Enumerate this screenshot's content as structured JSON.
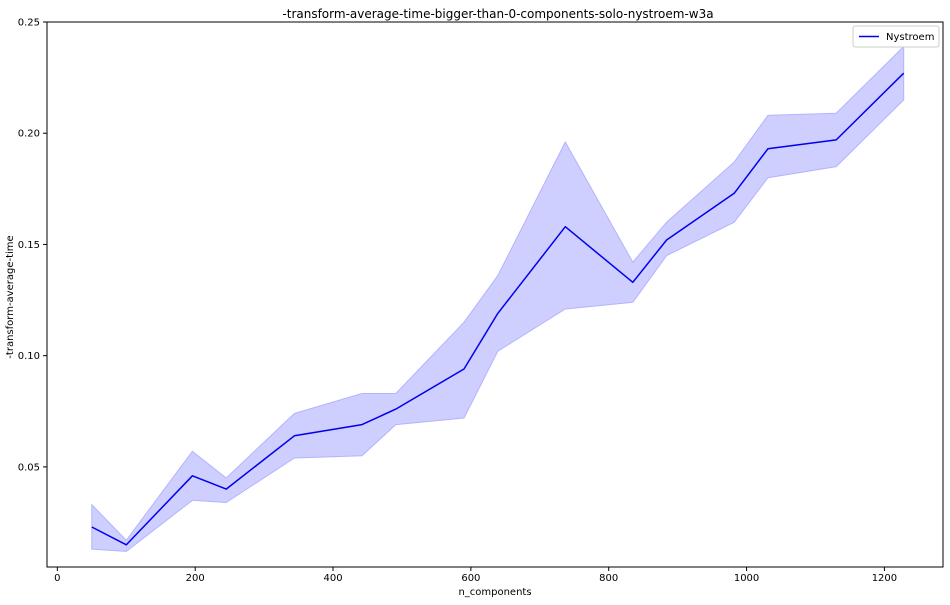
{
  "chart_data": {
    "type": "line",
    "title": "-transform-average-time-bigger-than-0-components-solo-nystroem-w3a",
    "xlabel": "n_components",
    "ylabel": "-transform-average-time",
    "xlim": [
      -15,
      1285
    ],
    "ylim": [
      0.005,
      0.25
    ],
    "xticks": [
      0,
      200,
      400,
      600,
      800,
      1000,
      1200
    ],
    "yticks": [
      0.05,
      0.1,
      0.15,
      0.2,
      0.25
    ],
    "ytick_labels": [
      "0.05",
      "0.10",
      "0.15",
      "0.20",
      "0.25"
    ],
    "grid": false,
    "legend_position": "top-right",
    "series": [
      {
        "name": "Nystroem",
        "color": "#0000ee",
        "band_color": "#b3b3ff",
        "x": [
          50,
          100,
          196,
          245,
          344,
          442,
          491,
          590,
          639,
          737,
          835,
          884,
          982,
          1031,
          1130,
          1228
        ],
        "y": [
          0.023,
          0.015,
          0.046,
          0.04,
          0.064,
          0.069,
          0.076,
          0.094,
          0.119,
          0.158,
          0.133,
          0.152,
          0.173,
          0.193,
          0.197,
          0.227
        ],
        "upper": [
          0.033,
          0.017,
          0.057,
          0.045,
          0.074,
          0.083,
          0.083,
          0.115,
          0.136,
          0.196,
          0.142,
          0.16,
          0.187,
          0.208,
          0.209,
          0.239
        ],
        "lower": [
          0.013,
          0.012,
          0.035,
          0.034,
          0.054,
          0.055,
          0.069,
          0.072,
          0.102,
          0.121,
          0.124,
          0.145,
          0.16,
          0.18,
          0.185,
          0.215
        ]
      }
    ]
  }
}
